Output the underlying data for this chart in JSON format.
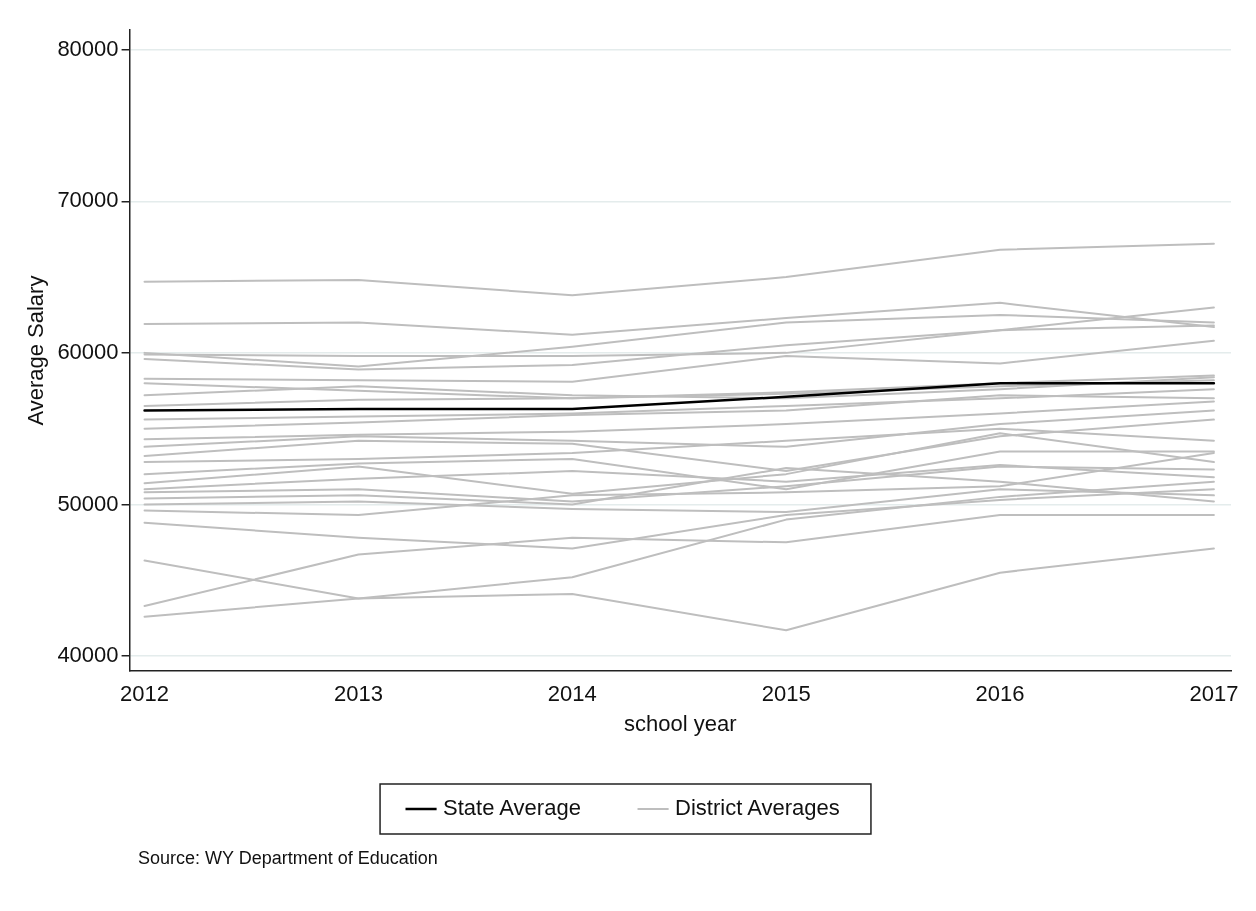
{
  "chart_data": {
    "type": "line",
    "xlabel": "school year",
    "ylabel": "Average Salary",
    "x": [
      2012,
      2013,
      2014,
      2015,
      2016,
      2017
    ],
    "xlim": [
      2011.93,
      2017.08
    ],
    "xticks": [
      2012,
      2013,
      2014,
      2015,
      2016,
      2017
    ],
    "ylim": [
      39000,
      81300
    ],
    "yticks": [
      40000,
      50000,
      60000,
      70000,
      80000
    ],
    "grid": "y",
    "legend": "bottom",
    "marker": "none",
    "line_style": "solid",
    "annotations": [
      "Source: WY Department of Education"
    ],
    "series": [
      {
        "name": "State Average",
        "color": "#000000",
        "values": [
          56200,
          56300,
          56300,
          57100,
          58000,
          58000
        ]
      },
      {
        "name": "District Averages",
        "color": "#bebebe",
        "values": [
          64700,
          64800,
          63800,
          65000,
          66800,
          67200
        ]
      },
      {
        "color": "#bebebe",
        "values": [
          61900,
          62000,
          61200,
          62300,
          63300,
          61700
        ]
      },
      {
        "color": "#bebebe",
        "values": [
          60000,
          59100,
          60400,
          62000,
          62500,
          62000
        ]
      },
      {
        "color": "#bebebe",
        "values": [
          59900,
          59800,
          59800,
          60000,
          61500,
          63000
        ]
      },
      {
        "color": "#bebebe",
        "values": [
          59600,
          58900,
          59200,
          60500,
          61500,
          61800
        ]
      },
      {
        "color": "#bebebe",
        "values": [
          58300,
          58200,
          58100,
          59800,
          59300,
          60800
        ]
      },
      {
        "color": "#bebebe",
        "values": [
          58000,
          57500,
          57000,
          57400,
          58000,
          58500
        ]
      },
      {
        "color": "#bebebe",
        "values": [
          57200,
          57800,
          57200,
          57000,
          57600,
          58400
        ]
      },
      {
        "color": "#bebebe",
        "values": [
          56500,
          56900,
          57000,
          57300,
          57800,
          58200
        ]
      },
      {
        "color": "#bebebe",
        "values": [
          55600,
          55800,
          56000,
          56500,
          57000,
          57600
        ]
      },
      {
        "color": "#bebebe",
        "values": [
          55000,
          55400,
          55900,
          56200,
          57200,
          57000
        ]
      },
      {
        "color": "#bebebe",
        "values": [
          54300,
          54600,
          54800,
          55300,
          56000,
          56800
        ]
      },
      {
        "color": "#bebebe",
        "values": [
          53800,
          54500,
          54200,
          53800,
          55300,
          56200
        ]
      },
      {
        "color": "#bebebe",
        "values": [
          53200,
          54200,
          54000,
          52200,
          54500,
          55600
        ]
      },
      {
        "color": "#bebebe",
        "values": [
          52800,
          53000,
          53400,
          54200,
          55000,
          54200
        ]
      },
      {
        "color": "#bebebe",
        "values": [
          52000,
          52700,
          53000,
          51000,
          53500,
          53500
        ]
      },
      {
        "color": "#bebebe",
        "values": [
          51400,
          52500,
          50700,
          52000,
          54700,
          52800
        ]
      },
      {
        "color": "#bebebe",
        "values": [
          51000,
          51700,
          52200,
          51500,
          52600,
          51800
        ]
      },
      {
        "color": "#bebebe",
        "values": [
          50800,
          51000,
          50200,
          51200,
          52500,
          52300
        ]
      },
      {
        "color": "#bebebe",
        "values": [
          50400,
          50600,
          50000,
          52400,
          51500,
          50200
        ]
      },
      {
        "color": "#bebebe",
        "values": [
          50000,
          50200,
          49700,
          49500,
          51000,
          50600
        ]
      },
      {
        "color": "#bebebe",
        "values": [
          49600,
          49300,
          50600,
          50800,
          51200,
          53400
        ]
      },
      {
        "color": "#bebebe",
        "values": [
          48800,
          47800,
          47100,
          49300,
          50300,
          51000
        ]
      },
      {
        "color": "#bebebe",
        "values": [
          46300,
          43800,
          45200,
          49000,
          50500,
          51500
        ]
      },
      {
        "color": "#bebebe",
        "values": [
          43300,
          46700,
          47800,
          47500,
          49300,
          49300
        ]
      },
      {
        "color": "#bebebe",
        "values": [
          42600,
          43800,
          44100,
          41700,
          45500,
          47100
        ]
      }
    ]
  }
}
